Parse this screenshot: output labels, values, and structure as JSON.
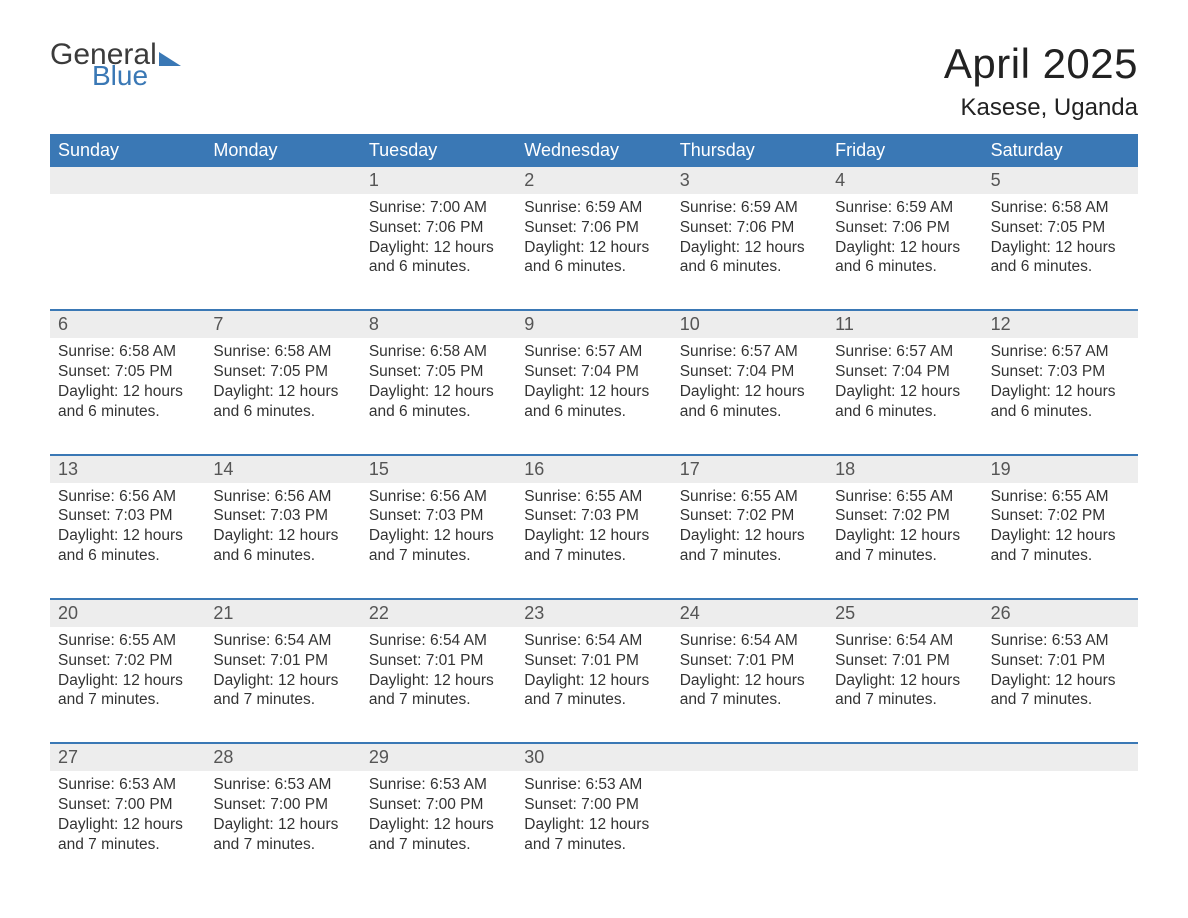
{
  "brand": {
    "word1": "General",
    "word2": "Blue",
    "accent_color": "#3a78b5"
  },
  "title": "April 2025",
  "location": "Kasese, Uganda",
  "colors": {
    "header_bg": "#3a78b5",
    "header_text": "#ffffff",
    "datestrip_bg": "#ededed",
    "datenum_text": "#555555",
    "body_text": "#333333",
    "rule": "#3a78b5",
    "page_bg": "#ffffff"
  },
  "weekdays": [
    "Sunday",
    "Monday",
    "Tuesday",
    "Wednesday",
    "Thursday",
    "Friday",
    "Saturday"
  ],
  "weeks": [
    {
      "days": [
        {
          "date": "",
          "sunrise": "",
          "sunset": "",
          "daylight": ""
        },
        {
          "date": "",
          "sunrise": "",
          "sunset": "",
          "daylight": ""
        },
        {
          "date": "1",
          "sunrise": "Sunrise: 7:00 AM",
          "sunset": "Sunset: 7:06 PM",
          "daylight": "Daylight: 12 hours and 6 minutes."
        },
        {
          "date": "2",
          "sunrise": "Sunrise: 6:59 AM",
          "sunset": "Sunset: 7:06 PM",
          "daylight": "Daylight: 12 hours and 6 minutes."
        },
        {
          "date": "3",
          "sunrise": "Sunrise: 6:59 AM",
          "sunset": "Sunset: 7:06 PM",
          "daylight": "Daylight: 12 hours and 6 minutes."
        },
        {
          "date": "4",
          "sunrise": "Sunrise: 6:59 AM",
          "sunset": "Sunset: 7:06 PM",
          "daylight": "Daylight: 12 hours and 6 minutes."
        },
        {
          "date": "5",
          "sunrise": "Sunrise: 6:58 AM",
          "sunset": "Sunset: 7:05 PM",
          "daylight": "Daylight: 12 hours and 6 minutes."
        }
      ]
    },
    {
      "days": [
        {
          "date": "6",
          "sunrise": "Sunrise: 6:58 AM",
          "sunset": "Sunset: 7:05 PM",
          "daylight": "Daylight: 12 hours and 6 minutes."
        },
        {
          "date": "7",
          "sunrise": "Sunrise: 6:58 AM",
          "sunset": "Sunset: 7:05 PM",
          "daylight": "Daylight: 12 hours and 6 minutes."
        },
        {
          "date": "8",
          "sunrise": "Sunrise: 6:58 AM",
          "sunset": "Sunset: 7:05 PM",
          "daylight": "Daylight: 12 hours and 6 minutes."
        },
        {
          "date": "9",
          "sunrise": "Sunrise: 6:57 AM",
          "sunset": "Sunset: 7:04 PM",
          "daylight": "Daylight: 12 hours and 6 minutes."
        },
        {
          "date": "10",
          "sunrise": "Sunrise: 6:57 AM",
          "sunset": "Sunset: 7:04 PM",
          "daylight": "Daylight: 12 hours and 6 minutes."
        },
        {
          "date": "11",
          "sunrise": "Sunrise: 6:57 AM",
          "sunset": "Sunset: 7:04 PM",
          "daylight": "Daylight: 12 hours and 6 minutes."
        },
        {
          "date": "12",
          "sunrise": "Sunrise: 6:57 AM",
          "sunset": "Sunset: 7:03 PM",
          "daylight": "Daylight: 12 hours and 6 minutes."
        }
      ]
    },
    {
      "days": [
        {
          "date": "13",
          "sunrise": "Sunrise: 6:56 AM",
          "sunset": "Sunset: 7:03 PM",
          "daylight": "Daylight: 12 hours and 6 minutes."
        },
        {
          "date": "14",
          "sunrise": "Sunrise: 6:56 AM",
          "sunset": "Sunset: 7:03 PM",
          "daylight": "Daylight: 12 hours and 6 minutes."
        },
        {
          "date": "15",
          "sunrise": "Sunrise: 6:56 AM",
          "sunset": "Sunset: 7:03 PM",
          "daylight": "Daylight: 12 hours and 7 minutes."
        },
        {
          "date": "16",
          "sunrise": "Sunrise: 6:55 AM",
          "sunset": "Sunset: 7:03 PM",
          "daylight": "Daylight: 12 hours and 7 minutes."
        },
        {
          "date": "17",
          "sunrise": "Sunrise: 6:55 AM",
          "sunset": "Sunset: 7:02 PM",
          "daylight": "Daylight: 12 hours and 7 minutes."
        },
        {
          "date": "18",
          "sunrise": "Sunrise: 6:55 AM",
          "sunset": "Sunset: 7:02 PM",
          "daylight": "Daylight: 12 hours and 7 minutes."
        },
        {
          "date": "19",
          "sunrise": "Sunrise: 6:55 AM",
          "sunset": "Sunset: 7:02 PM",
          "daylight": "Daylight: 12 hours and 7 minutes."
        }
      ]
    },
    {
      "days": [
        {
          "date": "20",
          "sunrise": "Sunrise: 6:55 AM",
          "sunset": "Sunset: 7:02 PM",
          "daylight": "Daylight: 12 hours and 7 minutes."
        },
        {
          "date": "21",
          "sunrise": "Sunrise: 6:54 AM",
          "sunset": "Sunset: 7:01 PM",
          "daylight": "Daylight: 12 hours and 7 minutes."
        },
        {
          "date": "22",
          "sunrise": "Sunrise: 6:54 AM",
          "sunset": "Sunset: 7:01 PM",
          "daylight": "Daylight: 12 hours and 7 minutes."
        },
        {
          "date": "23",
          "sunrise": "Sunrise: 6:54 AM",
          "sunset": "Sunset: 7:01 PM",
          "daylight": "Daylight: 12 hours and 7 minutes."
        },
        {
          "date": "24",
          "sunrise": "Sunrise: 6:54 AM",
          "sunset": "Sunset: 7:01 PM",
          "daylight": "Daylight: 12 hours and 7 minutes."
        },
        {
          "date": "25",
          "sunrise": "Sunrise: 6:54 AM",
          "sunset": "Sunset: 7:01 PM",
          "daylight": "Daylight: 12 hours and 7 minutes."
        },
        {
          "date": "26",
          "sunrise": "Sunrise: 6:53 AM",
          "sunset": "Sunset: 7:01 PM",
          "daylight": "Daylight: 12 hours and 7 minutes."
        }
      ]
    },
    {
      "days": [
        {
          "date": "27",
          "sunrise": "Sunrise: 6:53 AM",
          "sunset": "Sunset: 7:00 PM",
          "daylight": "Daylight: 12 hours and 7 minutes."
        },
        {
          "date": "28",
          "sunrise": "Sunrise: 6:53 AM",
          "sunset": "Sunset: 7:00 PM",
          "daylight": "Daylight: 12 hours and 7 minutes."
        },
        {
          "date": "29",
          "sunrise": "Sunrise: 6:53 AM",
          "sunset": "Sunset: 7:00 PM",
          "daylight": "Daylight: 12 hours and 7 minutes."
        },
        {
          "date": "30",
          "sunrise": "Sunrise: 6:53 AM",
          "sunset": "Sunset: 7:00 PM",
          "daylight": "Daylight: 12 hours and 7 minutes."
        },
        {
          "date": "",
          "sunrise": "",
          "sunset": "",
          "daylight": ""
        },
        {
          "date": "",
          "sunrise": "",
          "sunset": "",
          "daylight": ""
        },
        {
          "date": "",
          "sunrise": "",
          "sunset": "",
          "daylight": ""
        }
      ]
    }
  ]
}
